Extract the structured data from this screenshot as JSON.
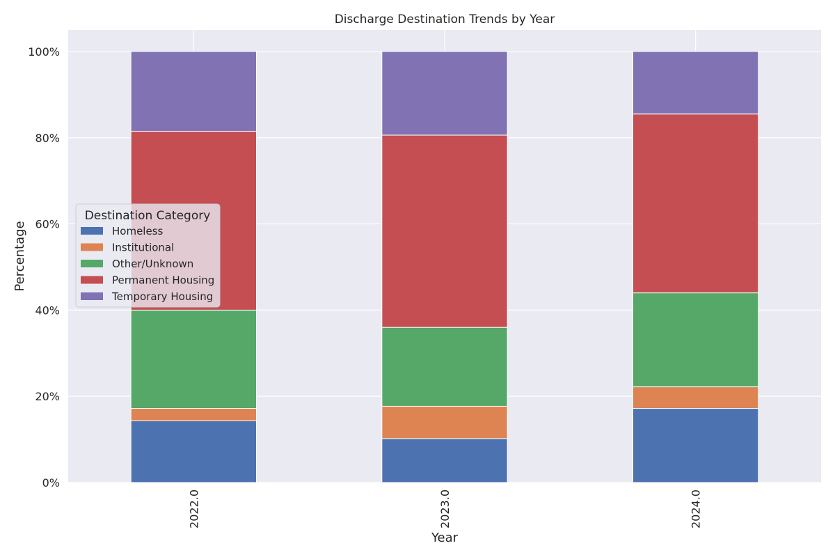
{
  "chart_data": {
    "type": "bar",
    "stacked": true,
    "title": "Discharge Destination Trends by Year",
    "xlabel": "Year",
    "ylabel": "Percentage",
    "ylim": [
      0,
      105
    ],
    "y_ticks": [
      "0%",
      "20%",
      "40%",
      "60%",
      "80%",
      "100%"
    ],
    "categories": [
      "2022.0",
      "2023.0",
      "2024.0"
    ],
    "legend_title": "Destination Category",
    "legend_position": "center-left",
    "grid": true,
    "series": [
      {
        "name": "Homeless",
        "color": "#4c72b0",
        "values": [
          14.3,
          10.2,
          17.2
        ]
      },
      {
        "name": "Institutional",
        "color": "#dd8452",
        "values": [
          2.9,
          7.5,
          5.0
        ]
      },
      {
        "name": "Other/Unknown",
        "color": "#55a868",
        "values": [
          22.8,
          18.3,
          21.8
        ]
      },
      {
        "name": "Permanent Housing",
        "color": "#c44e52",
        "values": [
          41.5,
          44.6,
          41.5
        ]
      },
      {
        "name": "Temporary Housing",
        "color": "#8172b3",
        "values": [
          18.5,
          19.4,
          14.5
        ]
      }
    ]
  }
}
